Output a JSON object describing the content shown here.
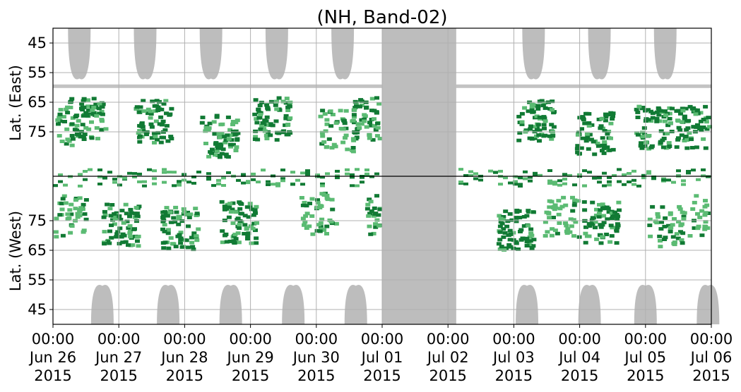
{
  "chart_data": {
    "type": "heatmap",
    "title": "(NH, Band-02)",
    "ylabel_top": "Lat. (East)",
    "ylabel_bottom": "Lat. (West)",
    "y_ticks_top": [
      "45",
      "55",
      "65",
      "75"
    ],
    "y_ticks_bottom": [
      "75",
      "65",
      "55",
      "45"
    ],
    "x_ticks": [
      {
        "time": "00:00",
        "date": "Jun 26",
        "year": "2015"
      },
      {
        "time": "00:00",
        "date": "Jun 27",
        "year": "2015"
      },
      {
        "time": "00:00",
        "date": "Jun 28",
        "year": "2015"
      },
      {
        "time": "00:00",
        "date": "Jun 29",
        "year": "2015"
      },
      {
        "time": "00:00",
        "date": "Jun 30",
        "year": "2015"
      },
      {
        "time": "00:00",
        "date": "Jul 01",
        "year": "2015"
      },
      {
        "time": "00:00",
        "date": "Jul 02",
        "year": "2015"
      },
      {
        "time": "00:00",
        "date": "Jul 03",
        "year": "2015"
      },
      {
        "time": "00:00",
        "date": "Jul 04",
        "year": "2015"
      },
      {
        "time": "00:00",
        "date": "Jul 05",
        "year": "2015"
      },
      {
        "time": "00:00",
        "date": "Jul 06",
        "year": "2015"
      }
    ],
    "x_range": [
      "2015-06-26 00:00",
      "2015-07-06 00:00"
    ],
    "y_range_top": [
      40,
      90
    ],
    "y_range_bottom": [
      90,
      40
    ],
    "grid": true,
    "colors": {
      "no_data": "#bdbdbd",
      "strong": "#117a34",
      "weak": "#5bbb73",
      "grid": "#b0b0b0",
      "divider": "#000000"
    },
    "no_data_gap": [
      "2015-07-01 00:00",
      "2015-07-02 03:00"
    ],
    "echo_activity": {
      "east": [
        {
          "day": 0.0,
          "lat": 72,
          "strength": "weak"
        },
        {
          "day": 0.5,
          "lat": 70,
          "strength": "strong"
        },
        {
          "day": 1.5,
          "lat": 71,
          "strength": "strong"
        },
        {
          "day": 2.5,
          "lat": 76,
          "strength": "strong"
        },
        {
          "day": 3.3,
          "lat": 70,
          "strength": "strong"
        },
        {
          "day": 4.3,
          "lat": 74,
          "strength": "weak"
        },
        {
          "day": 4.8,
          "lat": 70,
          "strength": "strong"
        },
        {
          "day": 7.3,
          "lat": 71,
          "strength": "strong"
        },
        {
          "day": 8.2,
          "lat": 75,
          "strength": "strong"
        },
        {
          "day": 9.1,
          "lat": 73,
          "strength": "strong"
        },
        {
          "day": 9.7,
          "lat": 73,
          "strength": "strong"
        }
      ],
      "west": [
        {
          "day": 0.2,
          "lat": 77,
          "strength": "weak"
        },
        {
          "day": 1.0,
          "lat": 74,
          "strength": "strong"
        },
        {
          "day": 1.9,
          "lat": 73,
          "strength": "strong"
        },
        {
          "day": 2.8,
          "lat": 75,
          "strength": "strong"
        },
        {
          "day": 4.0,
          "lat": 78,
          "strength": "weak"
        },
        {
          "day": 5.0,
          "lat": 77,
          "strength": "weak"
        },
        {
          "day": 7.0,
          "lat": 72,
          "strength": "strong"
        },
        {
          "day": 7.7,
          "lat": 77,
          "strength": "weak"
        },
        {
          "day": 8.3,
          "lat": 75,
          "strength": "strong"
        },
        {
          "day": 9.3,
          "lat": 74,
          "strength": "weak"
        },
        {
          "day": 9.9,
          "lat": 77,
          "strength": "weak"
        }
      ]
    }
  }
}
